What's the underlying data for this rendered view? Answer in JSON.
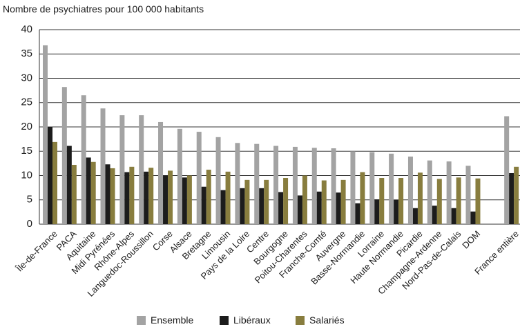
{
  "chart_data": {
    "type": "bar",
    "y_axis_label": "Nombre de psychiatres pour 100 000 habitants",
    "categories": [
      "Île-de-France",
      "PACA",
      "Aquitaine",
      "Midi Pyrénées",
      "Rhône-Alpes",
      "Languedoc-Roussillon",
      "Corse",
      "Alsace",
      "Bretagne",
      "Limousin",
      "Pays de la Loire",
      "Centre",
      "Bourgogne",
      "Poitou-Charentes",
      "Franche-Comté",
      "Auvergne",
      "Basse-Normandie",
      "Lorraine",
      "Haute Normandie",
      "Picardie",
      "Champagne-Ardenne",
      "Nord-Pas-de-Calais",
      "DOM",
      null,
      "France entière"
    ],
    "series": [
      {
        "name": "Ensemble",
        "color": "#a3a3a3",
        "values": [
          36.8,
          28.2,
          26.5,
          23.8,
          22.4,
          22.4,
          21.0,
          19.6,
          19.0,
          17.9,
          16.7,
          16.5,
          16.1,
          15.9,
          15.7,
          15.6,
          15.0,
          14.8,
          14.5,
          13.9,
          13.1,
          12.9,
          12.0,
          null,
          22.2
        ]
      },
      {
        "name": "Libéraux",
        "color": "#1c1c1c",
        "values": [
          20.0,
          16.1,
          13.7,
          12.3,
          10.7,
          10.8,
          10.0,
          9.6,
          7.7,
          7.0,
          7.4,
          7.4,
          6.6,
          5.9,
          6.7,
          6.5,
          4.3,
          5.1,
          5.0,
          3.3,
          3.8,
          3.3,
          2.6,
          null,
          10.5
        ]
      },
      {
        "name": "Salariés",
        "color": "#887d3e",
        "values": [
          16.9,
          12.2,
          12.8,
          11.5,
          11.8,
          11.6,
          11.0,
          10.0,
          11.2,
          10.8,
          9.1,
          9.1,
          9.5,
          10.0,
          9.0,
          9.1,
          10.7,
          9.5,
          9.5,
          10.6,
          9.3,
          9.6,
          9.4,
          null,
          11.8
        ]
      }
    ],
    "ylim": [
      0,
      40
    ],
    "yticks": [
      0,
      5,
      10,
      15,
      20,
      25,
      30,
      35,
      40
    ],
    "grid": true,
    "legend": "bottom"
  }
}
